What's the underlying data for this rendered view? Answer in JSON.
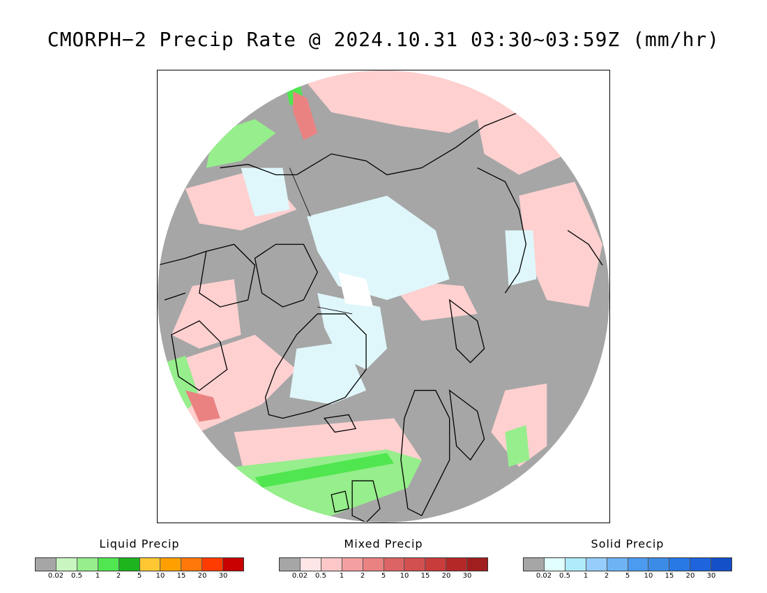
{
  "title": "CMORPH−2 Precip Rate @ 2024.10.31 03:30~03:59Z (mm/hr)",
  "legends": [
    {
      "title": "Liquid Precip",
      "colors": [
        "#a6a6a6",
        "#c8f5c0",
        "#96ee8c",
        "#50e650",
        "#1eb41e",
        "#ffc832",
        "#ffa000",
        "#ff780a",
        "#ff3c00",
        "#c80000"
      ],
      "ticks": [
        "0.02",
        "0.5",
        "1",
        "2",
        "5",
        "10",
        "15",
        "20",
        "30"
      ]
    },
    {
      "title": "Mixed Precip",
      "colors": [
        "#a6a6a6",
        "#ffe6e6",
        "#ffc8c8",
        "#f5a0a0",
        "#eb8282",
        "#dc6464",
        "#d25050",
        "#c83c3c",
        "#b42828",
        "#a01e1e"
      ],
      "ticks": [
        "0.02",
        "0.5",
        "1",
        "2",
        "5",
        "10",
        "15",
        "20",
        "30"
      ]
    },
    {
      "title": "Solid Precip",
      "colors": [
        "#a6a6a6",
        "#e1ffff",
        "#afebfa",
        "#96cdfa",
        "#6eb4f5",
        "#4b9bf0",
        "#3c8ce6",
        "#2878e6",
        "#1e64dc",
        "#1450c8"
      ],
      "ticks": [
        "0.02",
        "0.5",
        "1",
        "2",
        "5",
        "10",
        "15",
        "20",
        "30"
      ]
    }
  ]
}
